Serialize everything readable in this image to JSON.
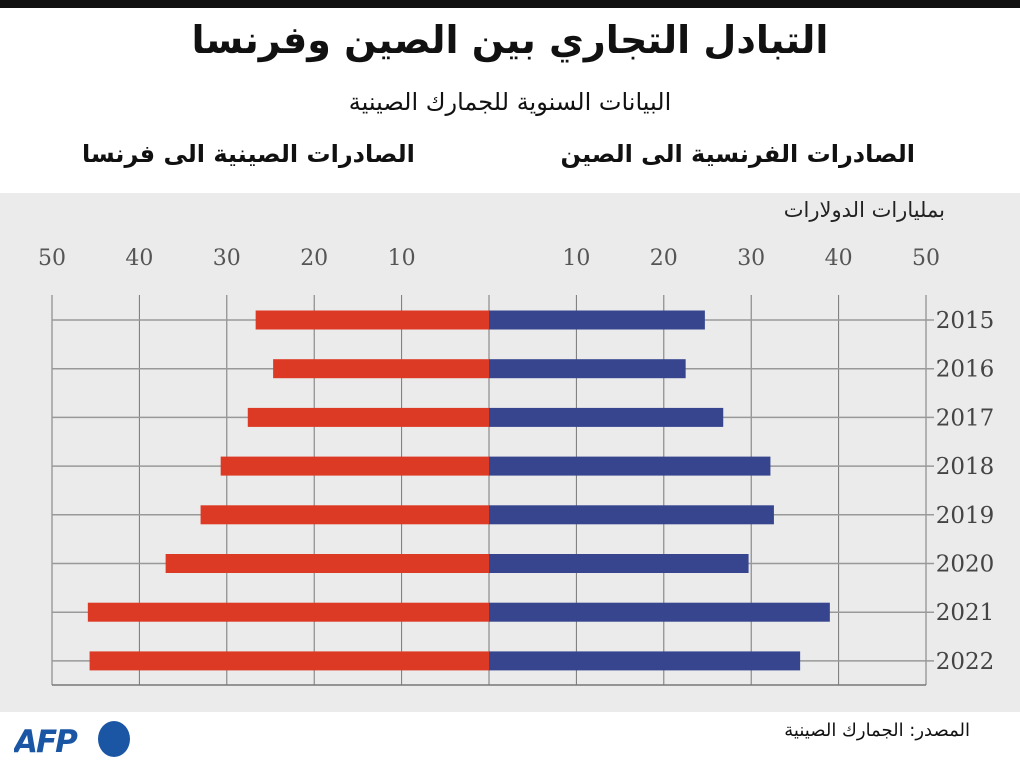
{
  "title": "التبادل التجاري بين الصين وفرنسا",
  "subtitle": "البيانات السنوية للجمارك الصينية",
  "source": "المصدر: الجمارك الصينية",
  "logo": "AFP",
  "chart_data": {
    "type": "bar",
    "orientation": "horizontal-butterfly",
    "unit_label": "بمليارات الدولارات",
    "categories": [
      "2015",
      "2016",
      "2017",
      "2018",
      "2019",
      "2020",
      "2021",
      "2022"
    ],
    "xlim": [
      0,
      50
    ],
    "ticks": [
      "10",
      "20",
      "30",
      "40",
      "50"
    ],
    "grid": true,
    "series": [
      {
        "name": "الصادرات الفرنسية الى الصين",
        "side": "right",
        "color": "#37458f",
        "values": [
          24.7,
          22.5,
          26.8,
          32.2,
          32.6,
          29.7,
          39.0,
          35.6
        ]
      },
      {
        "name": "الصادرات الصينية الى فرنسا",
        "side": "left",
        "color": "#dd3a25",
        "values": [
          26.7,
          24.7,
          27.6,
          30.7,
          33.0,
          37.0,
          45.9,
          45.7
        ]
      }
    ]
  },
  "colors": {
    "panel": "#ebebeb",
    "afp_blue": "#1b56a5"
  }
}
